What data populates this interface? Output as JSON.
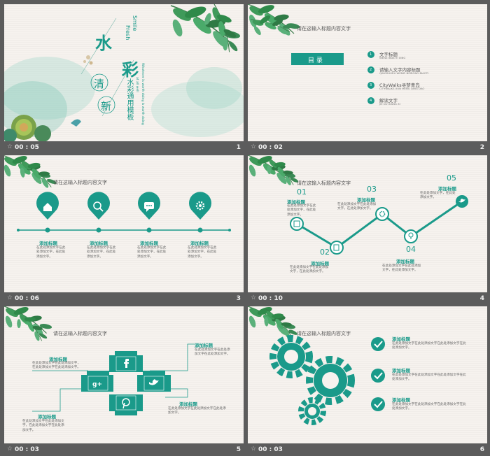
{
  "colors": {
    "teal": "#1a9a8a",
    "bg": "#f6f2ee",
    "frame": "#5c5c5c"
  },
  "title_placeholder": "请在这输入标题内容文字",
  "slides": [
    {
      "time": "00 : 05",
      "num": "1",
      "cn1": "水",
      "cn2": "彩",
      "cn3": "清",
      "cn4": "新",
      "smile": "Smile",
      "fresh": "Fresh",
      "subtitle": "水彩通用模板",
      "en_vert1": "Whatever is worth doing is worth doing",
      "en_vert2": "at all well"
    },
    {
      "time": "00 : 02",
      "num": "2",
      "toc": "目 录",
      "items": [
        {
          "n": "1",
          "cn": "文字标题",
          "en": "WENZI BIAOTI XING"
        },
        {
          "n": "2",
          "cn": "请输入文字内容标题",
          "en": "QINGSHURU WENZI NEIRONG BIAOTI"
        },
        {
          "n": "3",
          "cn": "CityWalks寻梦青岛",
          "en": "CITYWALKS XUN MENG QING DAO"
        },
        {
          "n": "4",
          "cn": "解读文字",
          "en": "JIE DU XIANG XI"
        }
      ]
    },
    {
      "time": "00 : 06",
      "num": "3",
      "items": [
        {
          "h": "添加标题",
          "t": "在此处添加文字在此处添加文字，在此处添加文字。"
        },
        {
          "h": "添加标题",
          "t": "在此处添加文字在此处添加文字，在此处添加文字。"
        },
        {
          "h": "添加标题",
          "t": "在此处添加文字在此处添加文字，在此处添加文字。"
        },
        {
          "h": "添加标题",
          "t": "在此处添加文字在此处添加文字，在此处添加文字。"
        }
      ]
    },
    {
      "time": "00 : 10",
      "num": "4",
      "items": [
        {
          "n": "01",
          "h": "添加标题",
          "t": "在此处添加文字在此处添加文字，在此处添加文字。"
        },
        {
          "n": "02",
          "h": "添加标题",
          "t": "在此处添加文字在此处添加文字，在此处添加文字。"
        },
        {
          "n": "03",
          "h": "添加标题",
          "t": "在此处添加文字在此处添加文字，在此处添加文字。"
        },
        {
          "n": "04",
          "h": "添加标题",
          "t": "在此处添加文字在此处添加文字，在此处添加文字。"
        },
        {
          "n": "05",
          "h": "添加标题",
          "t": "在此处添加文字，在此处添加文字。"
        }
      ]
    },
    {
      "time": "00 : 03",
      "num": "5",
      "items": [
        {
          "h": "添加标题",
          "t": "在此处添加文字在此处添加文字，在此处添加文字在此处添加文字。"
        },
        {
          "h": "添加标题",
          "t": "在此处添加文字在此处添加文字在此处添加文字。"
        },
        {
          "h": "添加标题",
          "t": "在此处添加文字在此处添加文字在此处添加文字。"
        },
        {
          "h": "添加标题",
          "t": "在此处添加文字在此处添加文字，在此处添加文字在此处添加文字。"
        }
      ],
      "icons": [
        "facebook-icon",
        "googleplus-icon",
        "twitter-icon",
        "pinterest-icon"
      ]
    },
    {
      "time": "00 : 03",
      "num": "6",
      "items": [
        {
          "h": "添加标题",
          "t": "在此处添加文字在此处添加文字在此处添加文字在此处添加文字。"
        },
        {
          "h": "添加标题",
          "t": "在此处添加文字在此处添加文字在此处添加文字在此处添加文字。"
        },
        {
          "h": "添加标题",
          "t": "在此处添加文字在此处添加文字在此处添加文字在此处添加文字。"
        }
      ]
    }
  ]
}
